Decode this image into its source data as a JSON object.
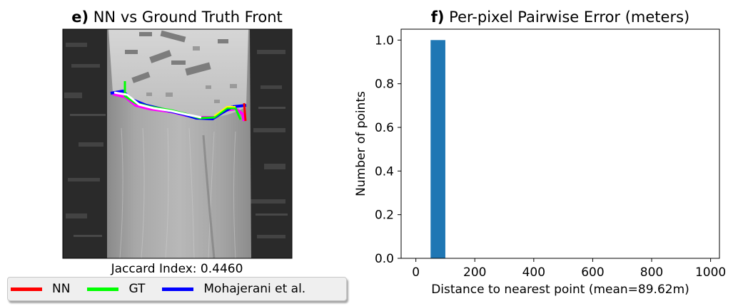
{
  "panel_e": {
    "title_prefix": "e)",
    "title_text": " NN vs Ground Truth Front",
    "subtitle": "Jaccard Index: 0.4460"
  },
  "panel_f": {
    "title_prefix": "f)",
    "title_text": " Per-pixel Pairwise Error (meters)"
  },
  "legend": {
    "items": [
      {
        "label": "NN",
        "color": "#ff0000"
      },
      {
        "label": "GT",
        "color": "#00ff00"
      },
      {
        "label": "Mohajerani et al.",
        "color": "#0000ff"
      }
    ]
  },
  "chart_data": [
    {
      "type": "image",
      "title": "e) NN vs Ground Truth Front",
      "xlabel": "Jaccard Index: 0.4460",
      "legend": [
        "NN",
        "GT",
        "Mohajerani et al."
      ],
      "legend_placement": "below"
    },
    {
      "type": "bar",
      "title": "f) Per-pixel Pairwise Error (meters)",
      "xlabel": "Distance to nearest point (mean=89.62m)",
      "ylabel": "Number of points",
      "xlim": [
        -50,
        1030
      ],
      "ylim": [
        0,
        1.05
      ],
      "xticks": [
        0,
        200,
        400,
        600,
        800,
        1000
      ],
      "yticks": [
        0.0,
        0.2,
        0.4,
        0.6,
        0.8,
        1.0
      ],
      "ytick_labels": [
        "0.0",
        "0.2",
        "0.4",
        "0.6",
        "0.8",
        "1.0"
      ],
      "bars": [
        {
          "x_start": 50,
          "x_end": 100,
          "value": 1.0
        }
      ],
      "color": "#1f77b4",
      "grid": false
    }
  ]
}
